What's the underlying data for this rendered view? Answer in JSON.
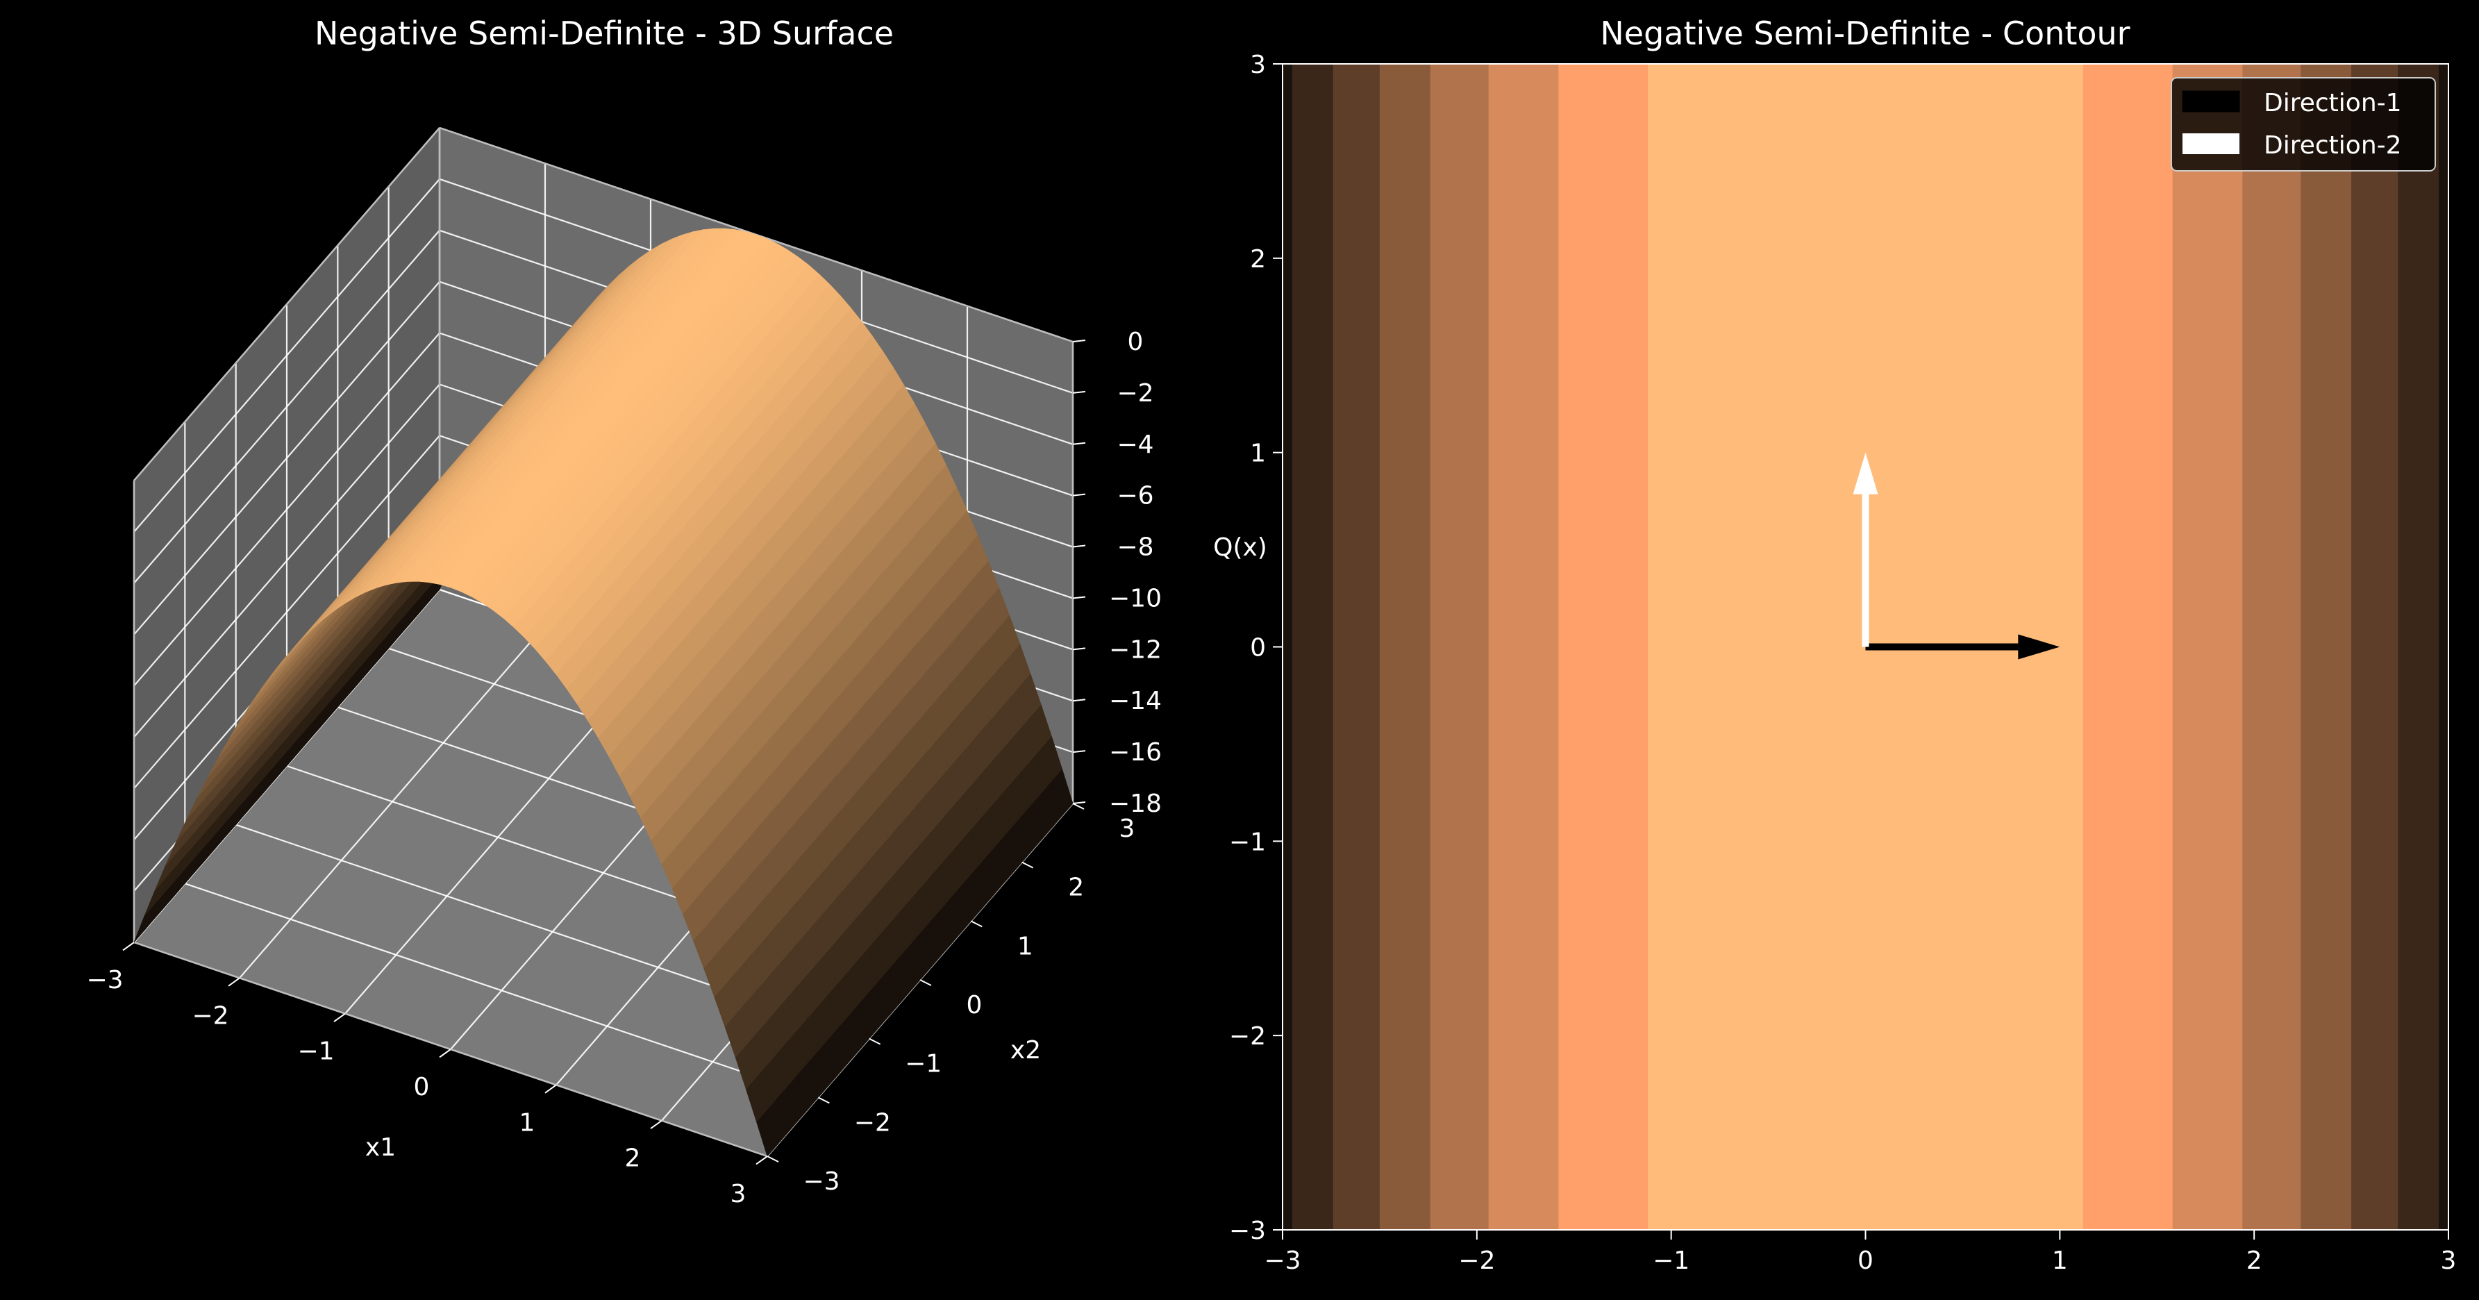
{
  "colors": {
    "background": "#000000",
    "pane": "#7f7f7f",
    "grid": "#ffffff",
    "surface_peak": "#ffbe7a",
    "surface_low": "#0d0805",
    "contour_levels": [
      "#1a120c",
      "#3a271a",
      "#5f3e29",
      "#8a5b3b",
      "#b0734b",
      "#d78a5b",
      "#ffa06a",
      "#ffbb7a"
    ]
  },
  "chart_data": [
    {
      "type": "surface",
      "title": "Negative Semi-Definite - 3D Surface",
      "xlabel": "x1",
      "ylabel": "x2",
      "zlabel": "Q(x)",
      "function": "Q(x) = -2 * x1^2",
      "xlim": [
        -3,
        3
      ],
      "ylim": [
        -3,
        3
      ],
      "zlim": [
        -18,
        0
      ],
      "xticks": [
        "−3",
        "−2",
        "−1",
        "0",
        "1",
        "2",
        "3"
      ],
      "yticks": [
        "−3",
        "−2",
        "−1",
        "0",
        "1",
        "2",
        "3"
      ],
      "zticks": [
        "0",
        "−2",
        "−4",
        "−6",
        "−8",
        "−10",
        "−12",
        "−14",
        "−16",
        "−18"
      ],
      "colormap": "copper",
      "grid": true
    },
    {
      "type": "contour",
      "title": "Negative Semi-Definite - Contour",
      "function": "Q(x) = -2 * x1^2",
      "xlim": [
        -3,
        3
      ],
      "ylim": [
        -3,
        3
      ],
      "xticks": [
        "−3",
        "−2",
        "−1",
        "0",
        "1",
        "2",
        "3"
      ],
      "yticks": [
        "−3",
        "−2",
        "−1",
        "0",
        "1",
        "2",
        "3"
      ],
      "colormap": "copper",
      "band_edges_x1": [
        2.95,
        2.74,
        2.5,
        2.24,
        1.94,
        1.58,
        1.12
      ],
      "legend": {
        "placement": "top-right",
        "entries": [
          {
            "label": "Direction-1",
            "color": "#000000"
          },
          {
            "label": "Direction-2",
            "color": "#ffffff"
          }
        ]
      },
      "vectors": [
        {
          "name": "Direction-1",
          "from": [
            0,
            0
          ],
          "to": [
            1,
            0
          ],
          "color": "#000000"
        },
        {
          "name": "Direction-2",
          "from": [
            0,
            0
          ],
          "to": [
            0,
            1
          ],
          "color": "#ffffff"
        }
      ]
    }
  ]
}
